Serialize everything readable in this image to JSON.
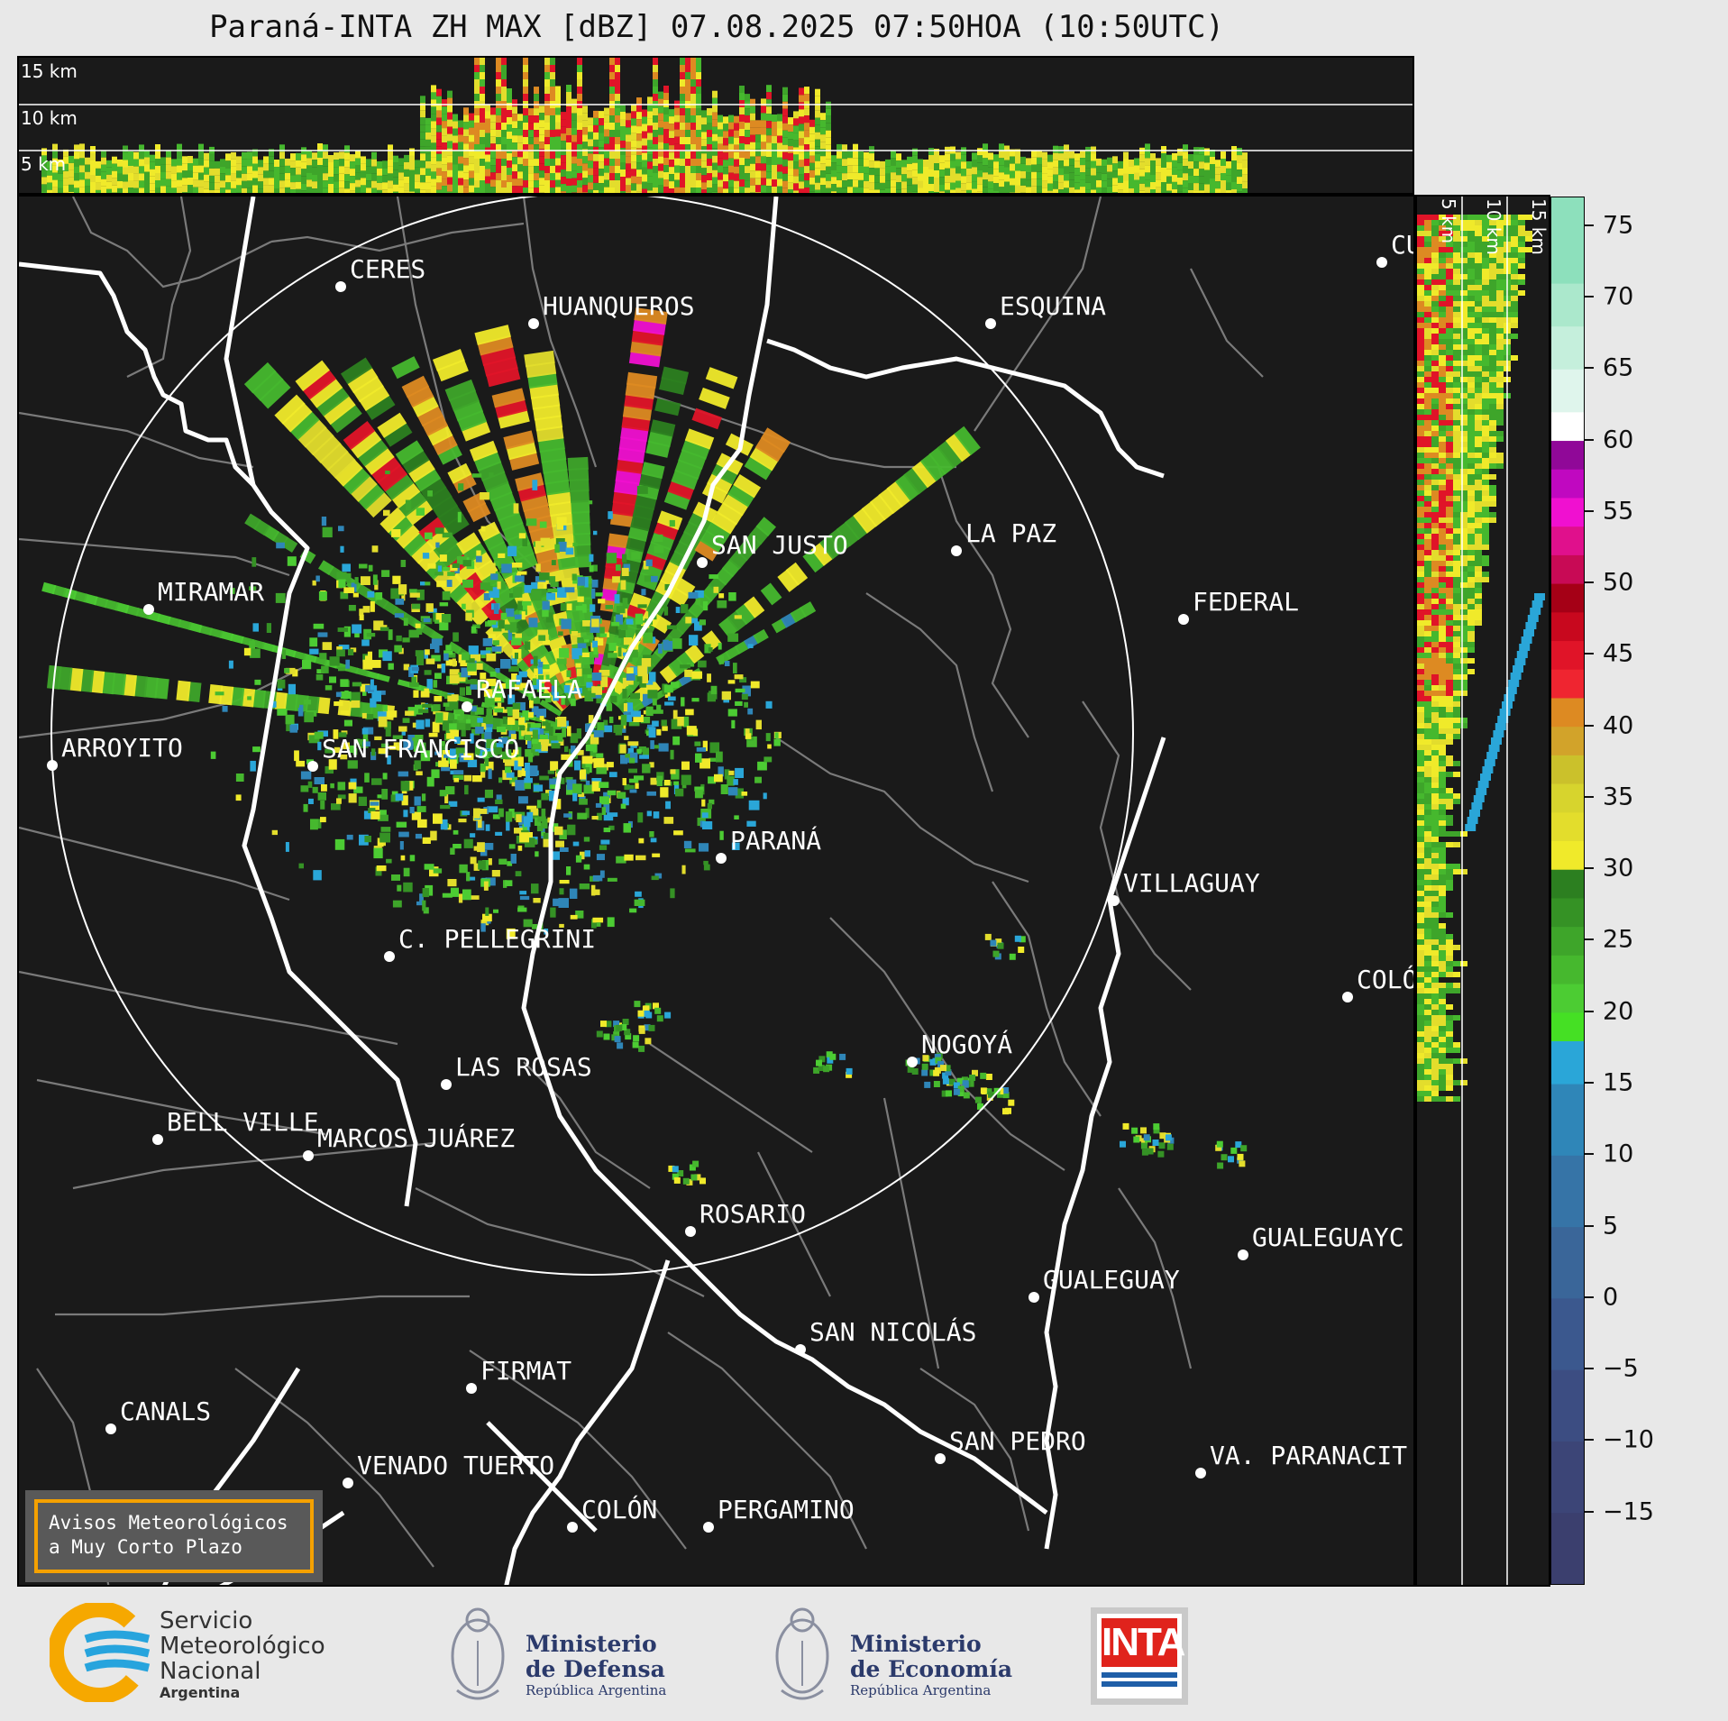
{
  "title": "Paraná-INTA ZH MAX [dBZ] 07.08.2025 07:50HOA (10:50UTC)",
  "top_panel": {
    "km_labels": [
      "15 km",
      "10 km",
      "5 km"
    ]
  },
  "side_panel": {
    "km_labels": [
      "5 km",
      "10 km",
      "15 km"
    ]
  },
  "colorbar": {
    "ticks": [
      "75",
      "70",
      "65",
      "60",
      "55",
      "50",
      "45",
      "40",
      "35",
      "30",
      "25",
      "20",
      "15",
      "10",
      "5",
      "0",
      "−5",
      "−10",
      "−15"
    ],
    "range": [
      -20,
      77
    ]
  },
  "cities": [
    {
      "name": "CERES",
      "id": "ceres"
    },
    {
      "name": "HUANQUEROS",
      "id": "huanqueros"
    },
    {
      "name": "ESQUINA",
      "id": "esquina"
    },
    {
      "name": "CU",
      "id": "cu"
    },
    {
      "name": "SAN JUSTO",
      "id": "san-justo"
    },
    {
      "name": "LA PAZ",
      "id": "la-paz"
    },
    {
      "name": "MIRAMAR",
      "id": "miramar"
    },
    {
      "name": "FEDERAL",
      "id": "federal"
    },
    {
      "name": "RAFAELA",
      "id": "rafaela"
    },
    {
      "name": "ARROYITO",
      "id": "arroyito"
    },
    {
      "name": "SAN FRANCISCO",
      "id": "san-francisco"
    },
    {
      "name": "PARANÁ",
      "id": "parana"
    },
    {
      "name": "VILLAGUAY",
      "id": "villaguay"
    },
    {
      "name": "C. PELLEGRINI",
      "id": "c-pellegrini"
    },
    {
      "name": "COLÓ",
      "id": "colo"
    },
    {
      "name": "NOGOYÁ",
      "id": "nogoya"
    },
    {
      "name": "LAS ROSAS",
      "id": "las-rosas"
    },
    {
      "name": "BELL VILLE",
      "id": "bell-ville"
    },
    {
      "name": "MARCOS JUÁREZ",
      "id": "marcos-juarez"
    },
    {
      "name": "ROSARIO",
      "id": "rosario"
    },
    {
      "name": "GUALEGUAYC",
      "id": "gualeguayc"
    },
    {
      "name": "GUALEGUAY",
      "id": "gualeguay"
    },
    {
      "name": "SAN NICOLÁS",
      "id": "san-nicolas"
    },
    {
      "name": "FIRMAT",
      "id": "firmat"
    },
    {
      "name": "CANALS",
      "id": "canals"
    },
    {
      "name": "SAN PEDRO",
      "id": "san-pedro"
    },
    {
      "name": "VENADO TUERTO",
      "id": "venado-tuerto"
    },
    {
      "name": "VA. PARANACIT",
      "id": "va-paranacit"
    },
    {
      "name": "COLÓN",
      "id": "colon"
    },
    {
      "name": "PERGAMINO",
      "id": "pergamino"
    }
  ],
  "notice": {
    "line1": "Avisos Meteorológicos",
    "line2": "a Muy Corto Plazo"
  },
  "logos": {
    "smn": {
      "line1": "Servicio",
      "line2": "Meteorológico",
      "line3": "Nacional",
      "line4": "Argentina"
    },
    "defensa": {
      "line1": "Ministerio",
      "line2": "de Defensa",
      "line3": "República Argentina"
    },
    "economia": {
      "line1": "Ministerio",
      "line2": "de Economía",
      "line3": "República Argentina"
    },
    "inta": {
      "text": "INTA"
    }
  },
  "colors": {
    "background": "#1a1a1a",
    "notice_border": "#f5a100",
    "inta_red": "#e0231c",
    "smn_orange": "#f6a800",
    "smn_blue": "#27a4dd"
  }
}
